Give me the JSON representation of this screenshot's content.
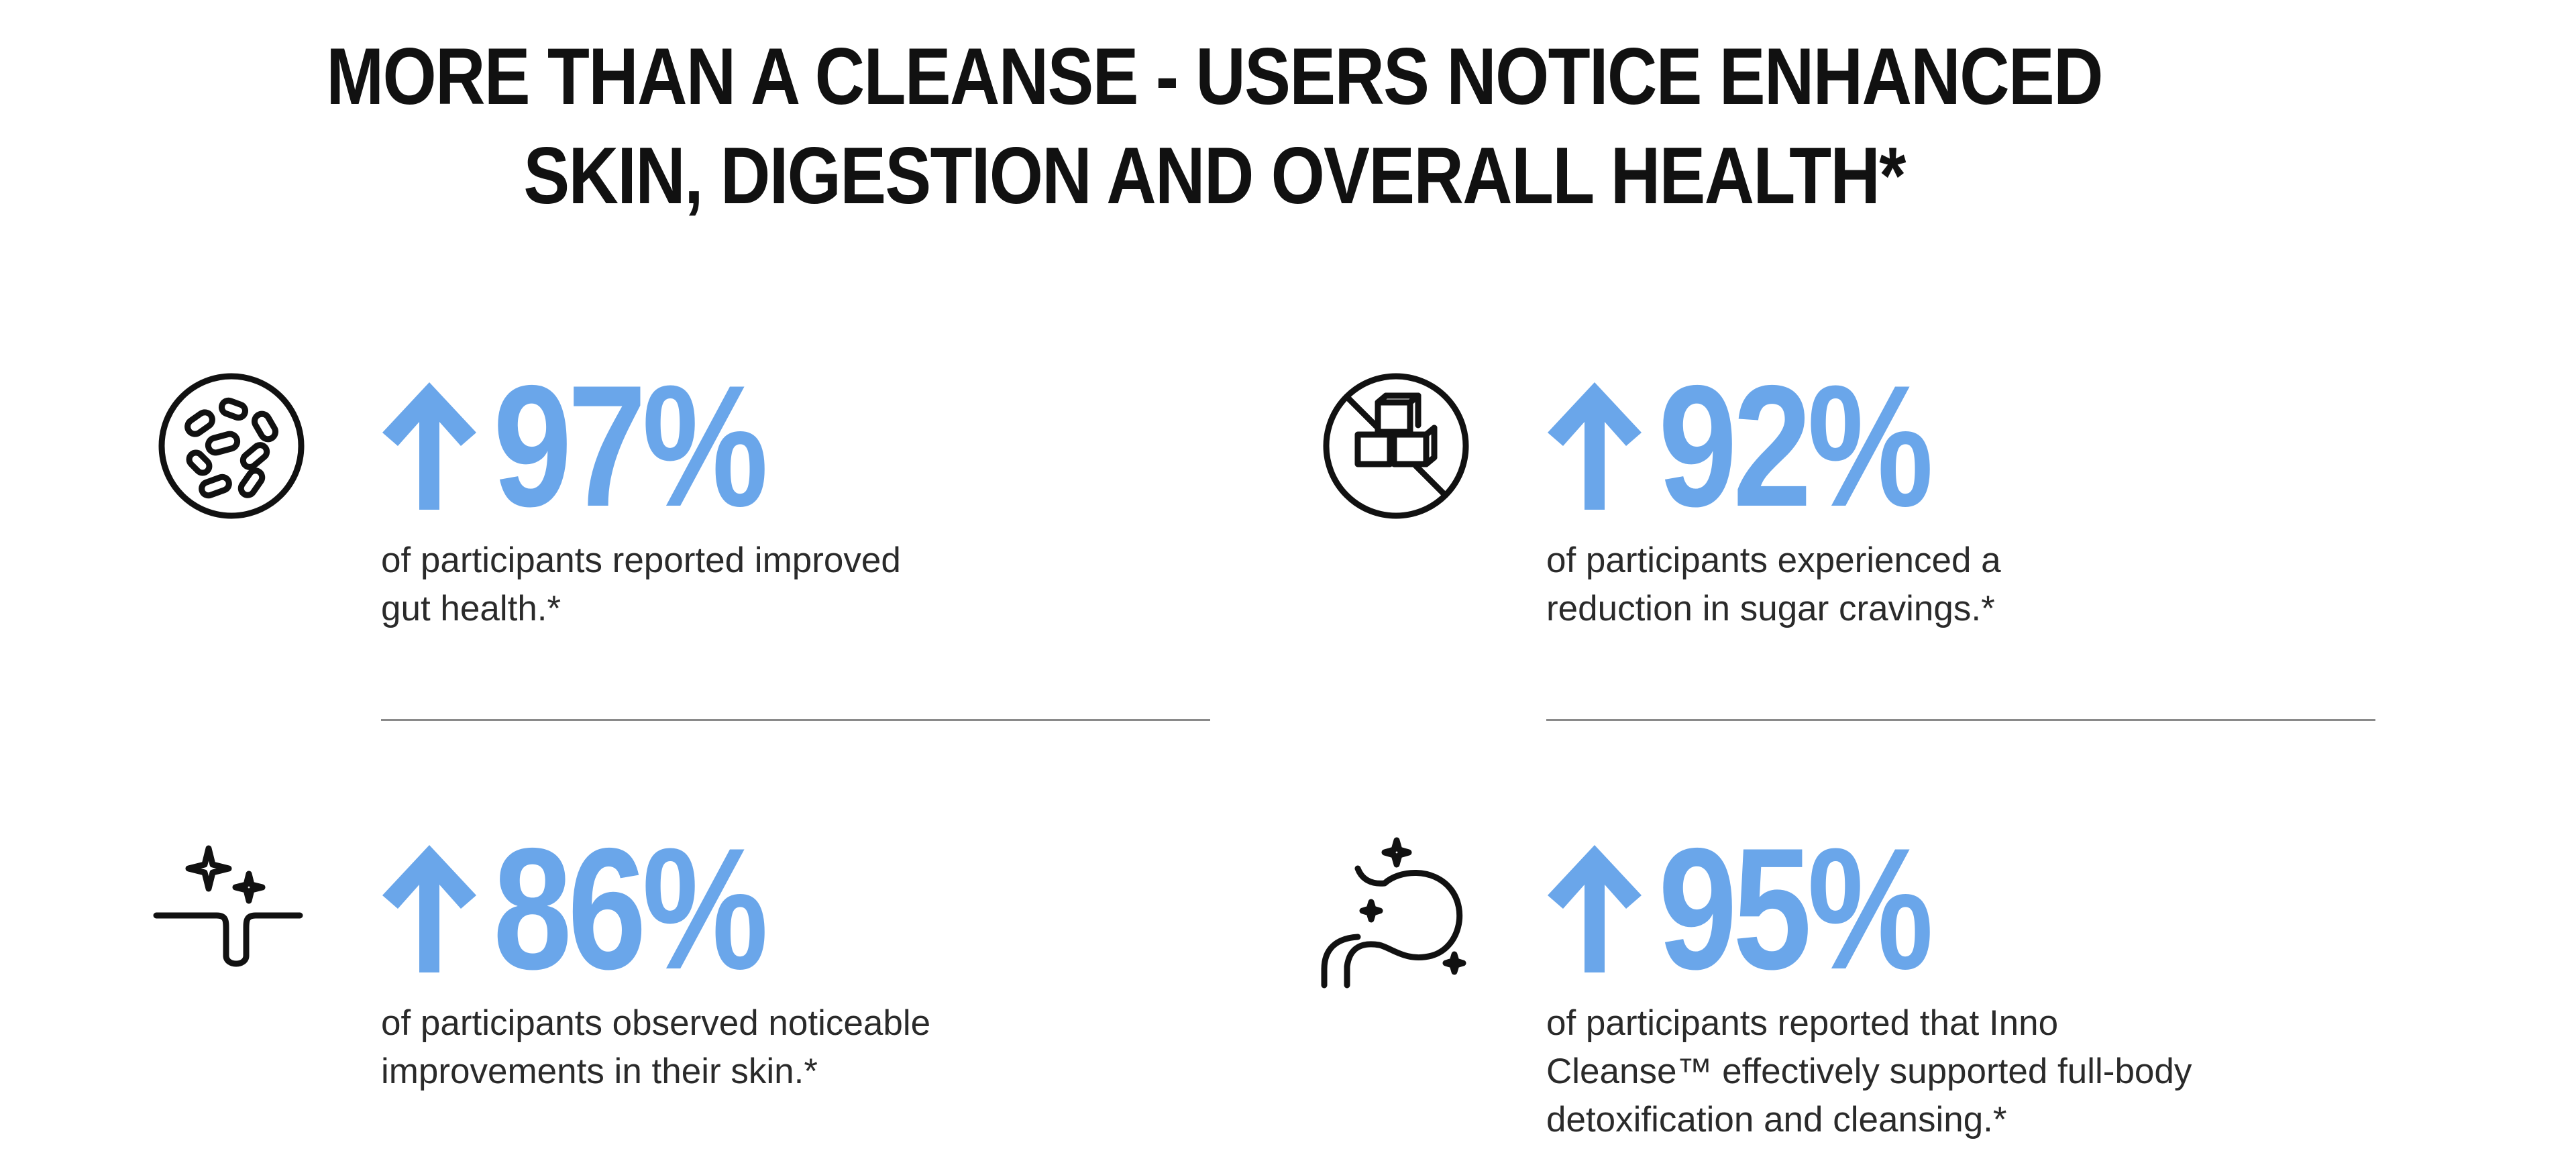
{
  "headline": {
    "line1": "MORE THAN A CLEANSE - USERS NOTICE ENHANCED",
    "line2": "SKIN, DIGESTION AND OVERALL HEALTH*"
  },
  "colors": {
    "accent": "#6aa6ea",
    "text": "#2a2a2a",
    "headline": "#111111",
    "divider": "#8a8a8a"
  },
  "stats": [
    {
      "icon": "gut-bacteria-icon",
      "indicator": "up-arrow-icon",
      "value": "97%",
      "description": [
        "of participants reported improved",
        "gut health.*"
      ]
    },
    {
      "icon": "no-sugar-cubes-icon",
      "indicator": "up-arrow-icon",
      "value": "92%",
      "description": [
        "of participants experienced a",
        "reduction in sugar cravings.*"
      ]
    },
    {
      "icon": "skin-sparkle-icon",
      "indicator": "up-arrow-icon",
      "value": "86%",
      "description": [
        "of participants observed noticeable",
        "improvements in their skin.*"
      ]
    },
    {
      "icon": "stomach-sparkle-icon",
      "indicator": "up-arrow-icon",
      "value": "95%",
      "description": [
        "of participants reported that Inno",
        "Cleanse™ effectively supported full-body",
        "detoxification and cleansing.*"
      ]
    }
  ]
}
